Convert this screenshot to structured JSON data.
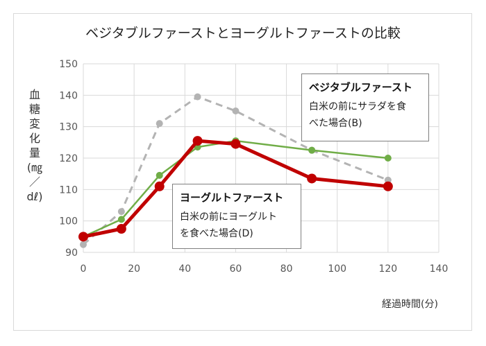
{
  "chart_data": {
    "type": "line",
    "title": "ベジタブルファーストとヨーグルトファーストの比較",
    "ylabel": "血糖変化量(㎎／dℓ)",
    "xlabel": "経過時間(分)",
    "xlim": [
      0,
      140
    ],
    "ylim": [
      90,
      150
    ],
    "xticks": [
      0,
      20,
      40,
      60,
      80,
      100,
      120,
      140
    ],
    "yticks": [
      90,
      100,
      110,
      120,
      130,
      140,
      150
    ],
    "grid": true,
    "series": [
      {
        "name": "gray-dashed",
        "style": "dashed",
        "color": "#b3b3b3",
        "x": [
          0,
          15,
          30,
          45,
          60,
          90,
          120
        ],
        "y": [
          92.5,
          103,
          131,
          139.5,
          135,
          122.5,
          113
        ]
      },
      {
        "name": "ベジタブルファースト",
        "style": "solid",
        "color": "#70ad47",
        "x": [
          0,
          15,
          30,
          45,
          60,
          90,
          120
        ],
        "y": [
          95,
          100.5,
          114.5,
          123.5,
          125.5,
          122.5,
          120
        ]
      },
      {
        "name": "ヨーグルトファースト",
        "style": "solid-bold",
        "color": "#c00000",
        "x": [
          0,
          15,
          30,
          45,
          60,
          90,
          120
        ],
        "y": [
          95,
          97.5,
          111,
          125.5,
          124.5,
          113.5,
          111
        ]
      }
    ],
    "annotations": [
      {
        "title": "ベジタブルファースト",
        "lines": [
          "白米の前にサラダを食",
          "べた場合(B)"
        ]
      },
      {
        "title": "ヨーグルトファースト",
        "lines": [
          "白米の前にヨーグルト",
          "を食べた場合(D)"
        ]
      }
    ]
  }
}
